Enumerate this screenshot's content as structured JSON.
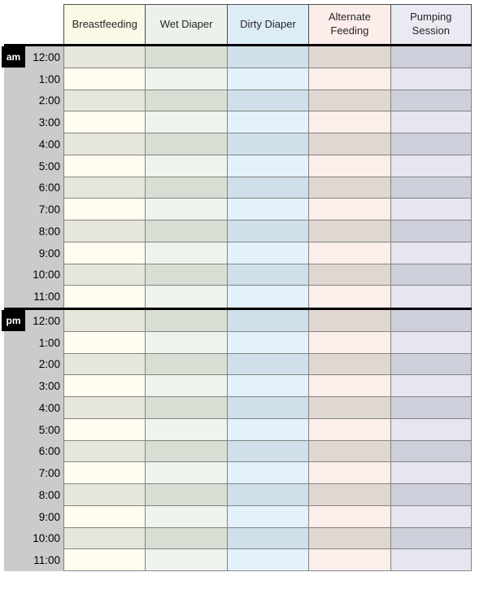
{
  "columns": [
    {
      "id": "breastfeeding",
      "label": "Breastfeeding",
      "header_bg": "#fbfae7",
      "row_light": "#fefdf0",
      "row_dark": "#e7e6dc"
    },
    {
      "id": "wet-diaper",
      "label": "Wet Diaper",
      "header_bg": "#ecf1eb",
      "row_light": "#eff3ed",
      "row_dark": "#d9ded4"
    },
    {
      "id": "dirty-diaper",
      "label": "Dirty Diaper",
      "header_bg": "#ddedf8",
      "row_light": "#e3f1fb",
      "row_dark": "#cfe0ea"
    },
    {
      "id": "alternate-feeding",
      "label": "Alternate Feeding",
      "header_bg": "#fcedeb",
      "row_light": "#fceeea",
      "row_dark": "#e1d7d2"
    },
    {
      "id": "pumping-session",
      "label": "Pumping Session",
      "header_bg": "#e9eaf2",
      "row_light": "#e6e5f0",
      "row_dark": "#cdd0db"
    }
  ],
  "sections": [
    {
      "meridiem": "am",
      "times": [
        "12:00",
        "1:00",
        "2:00",
        "3:00",
        "4:00",
        "5:00",
        "6:00",
        "7:00",
        "8:00",
        "9:00",
        "10:00",
        "11:00"
      ]
    },
    {
      "meridiem": "pm",
      "times": [
        "12:00",
        "1:00",
        "2:00",
        "3:00",
        "4:00",
        "5:00",
        "6:00",
        "7:00",
        "8:00",
        "9:00",
        "10:00",
        "11:00"
      ]
    }
  ],
  "styles": {
    "time_column_bg": "#cbcbcb",
    "meridiem_bg": "#000000",
    "meridiem_text": "#ffffff",
    "divider_color": "#000000",
    "cell_border": "#82847f"
  }
}
